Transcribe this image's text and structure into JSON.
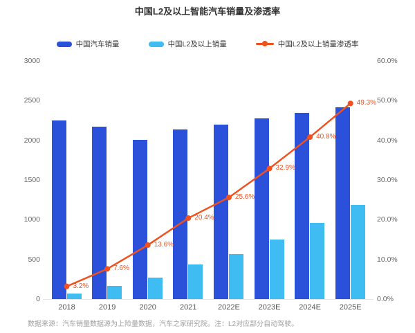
{
  "chart_data": {
    "type": "bar+line",
    "title": "中国L2及以上智能汽车销量及渗透率",
    "categories": [
      "2018",
      "2019",
      "2020",
      "2021",
      "2022E",
      "2023E",
      "2024E",
      "2025E"
    ],
    "series": [
      {
        "name": "中国汽车销量",
        "type": "bar",
        "color": "#2B50D9",
        "values": [
          2250,
          2170,
          2010,
          2140,
          2200,
          2275,
          2350,
          2420
        ]
      },
      {
        "name": "中国L2及以上销量",
        "type": "bar",
        "color": "#3FBDF2",
        "values": [
          72,
          165,
          272,
          437,
          563,
          748,
          957,
          1190
        ]
      },
      {
        "name": "中国L2及以上销量渗透率",
        "type": "line",
        "color": "#F0511E",
        "axis": "right",
        "values": [
          3.2,
          7.6,
          13.6,
          20.4,
          25.6,
          32.9,
          40.8,
          49.3
        ],
        "labels": [
          "3.2%",
          "7.6%",
          "13.6%",
          "20.4%",
          "25.6%",
          "32.9%",
          "40.8%",
          "49.3%"
        ]
      }
    ],
    "y_left": {
      "min": 0,
      "max": 3000,
      "ticks": [
        "0",
        "500",
        "1000",
        "1500",
        "2000",
        "2500",
        "3000"
      ]
    },
    "y_right": {
      "min": 0,
      "max": 60,
      "ticks": [
        "0.0%",
        "10.0%",
        "20.0%",
        "30.0%",
        "40.0%",
        "50.0%",
        "60.0%"
      ]
    },
    "grid": false,
    "legend_position": "top",
    "source_note": "数据来源：汽车销量数据源为上险量数据，汽车之家研究院。注：L2对应部分自动驾驶。"
  }
}
